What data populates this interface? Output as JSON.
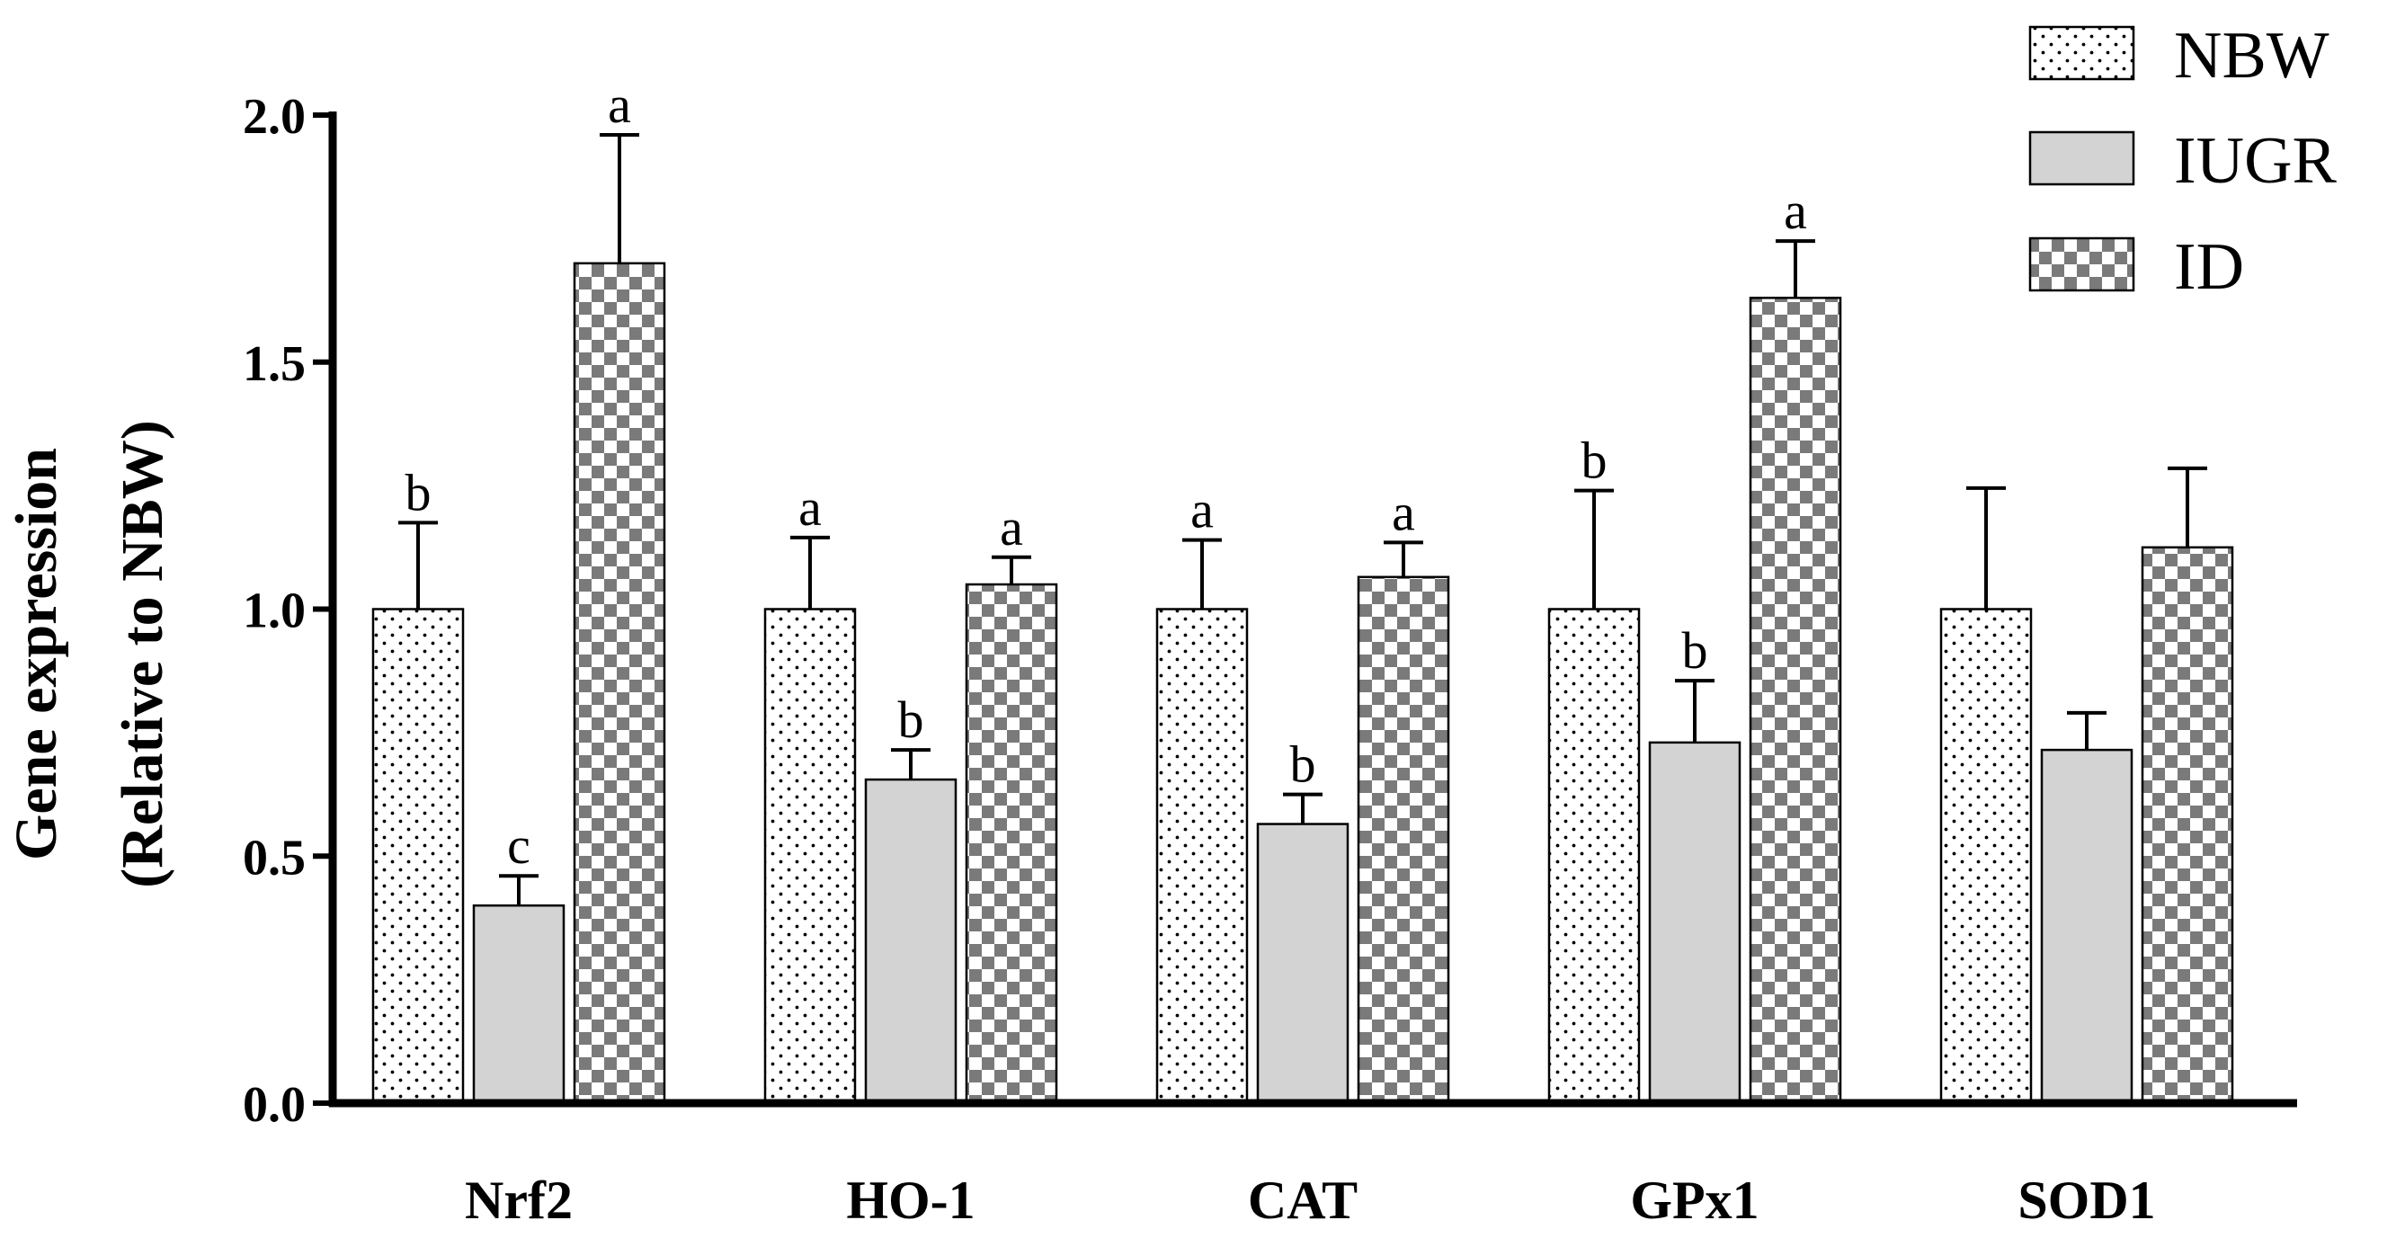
{
  "chart_data": {
    "type": "bar",
    "title": "",
    "xlabel": "",
    "ylabel_lines": [
      "Gene expression",
      "(Relative to NBW)"
    ],
    "ylim": [
      0,
      2.0
    ],
    "yticks": [
      0.0,
      0.5,
      1.0,
      1.5,
      2.0
    ],
    "ytick_labels": [
      "0.0",
      "0.5",
      "1.0",
      "1.5",
      "2.0"
    ],
    "legend_position": "top-right",
    "categories": [
      "Nrf2",
      "HO-1",
      "CAT",
      "GPx1",
      "SOD1"
    ],
    "series": [
      {
        "name": "NBW",
        "pattern": "dots",
        "values": [
          1.0,
          1.0,
          1.0,
          1.0,
          1.0
        ],
        "errors": [
          0.175,
          0.145,
          0.14,
          0.24,
          0.245
        ],
        "labels": [
          "b",
          "a",
          "a",
          "b",
          ""
        ]
      },
      {
        "name": "IUGR",
        "pattern": "solid-gray",
        "values": [
          0.4,
          0.655,
          0.565,
          0.73,
          0.715
        ],
        "errors": [
          0.06,
          0.06,
          0.06,
          0.125,
          0.075
        ],
        "labels": [
          "c",
          "b",
          "b",
          "b",
          ""
        ]
      },
      {
        "name": "ID",
        "pattern": "checker",
        "values": [
          1.7,
          1.05,
          1.065,
          1.63,
          1.125
        ],
        "errors": [
          0.26,
          0.055,
          0.07,
          0.115,
          0.16
        ],
        "labels": [
          "a",
          "a",
          "a",
          "a",
          ""
        ]
      }
    ],
    "colors": {
      "axis": "#000000",
      "bar_stroke": "#000000",
      "gray_fill": "#d3d3d3",
      "checker_dark": "#7a7a7a",
      "checker_light": "#ffffff",
      "dot": "#000000"
    }
  }
}
